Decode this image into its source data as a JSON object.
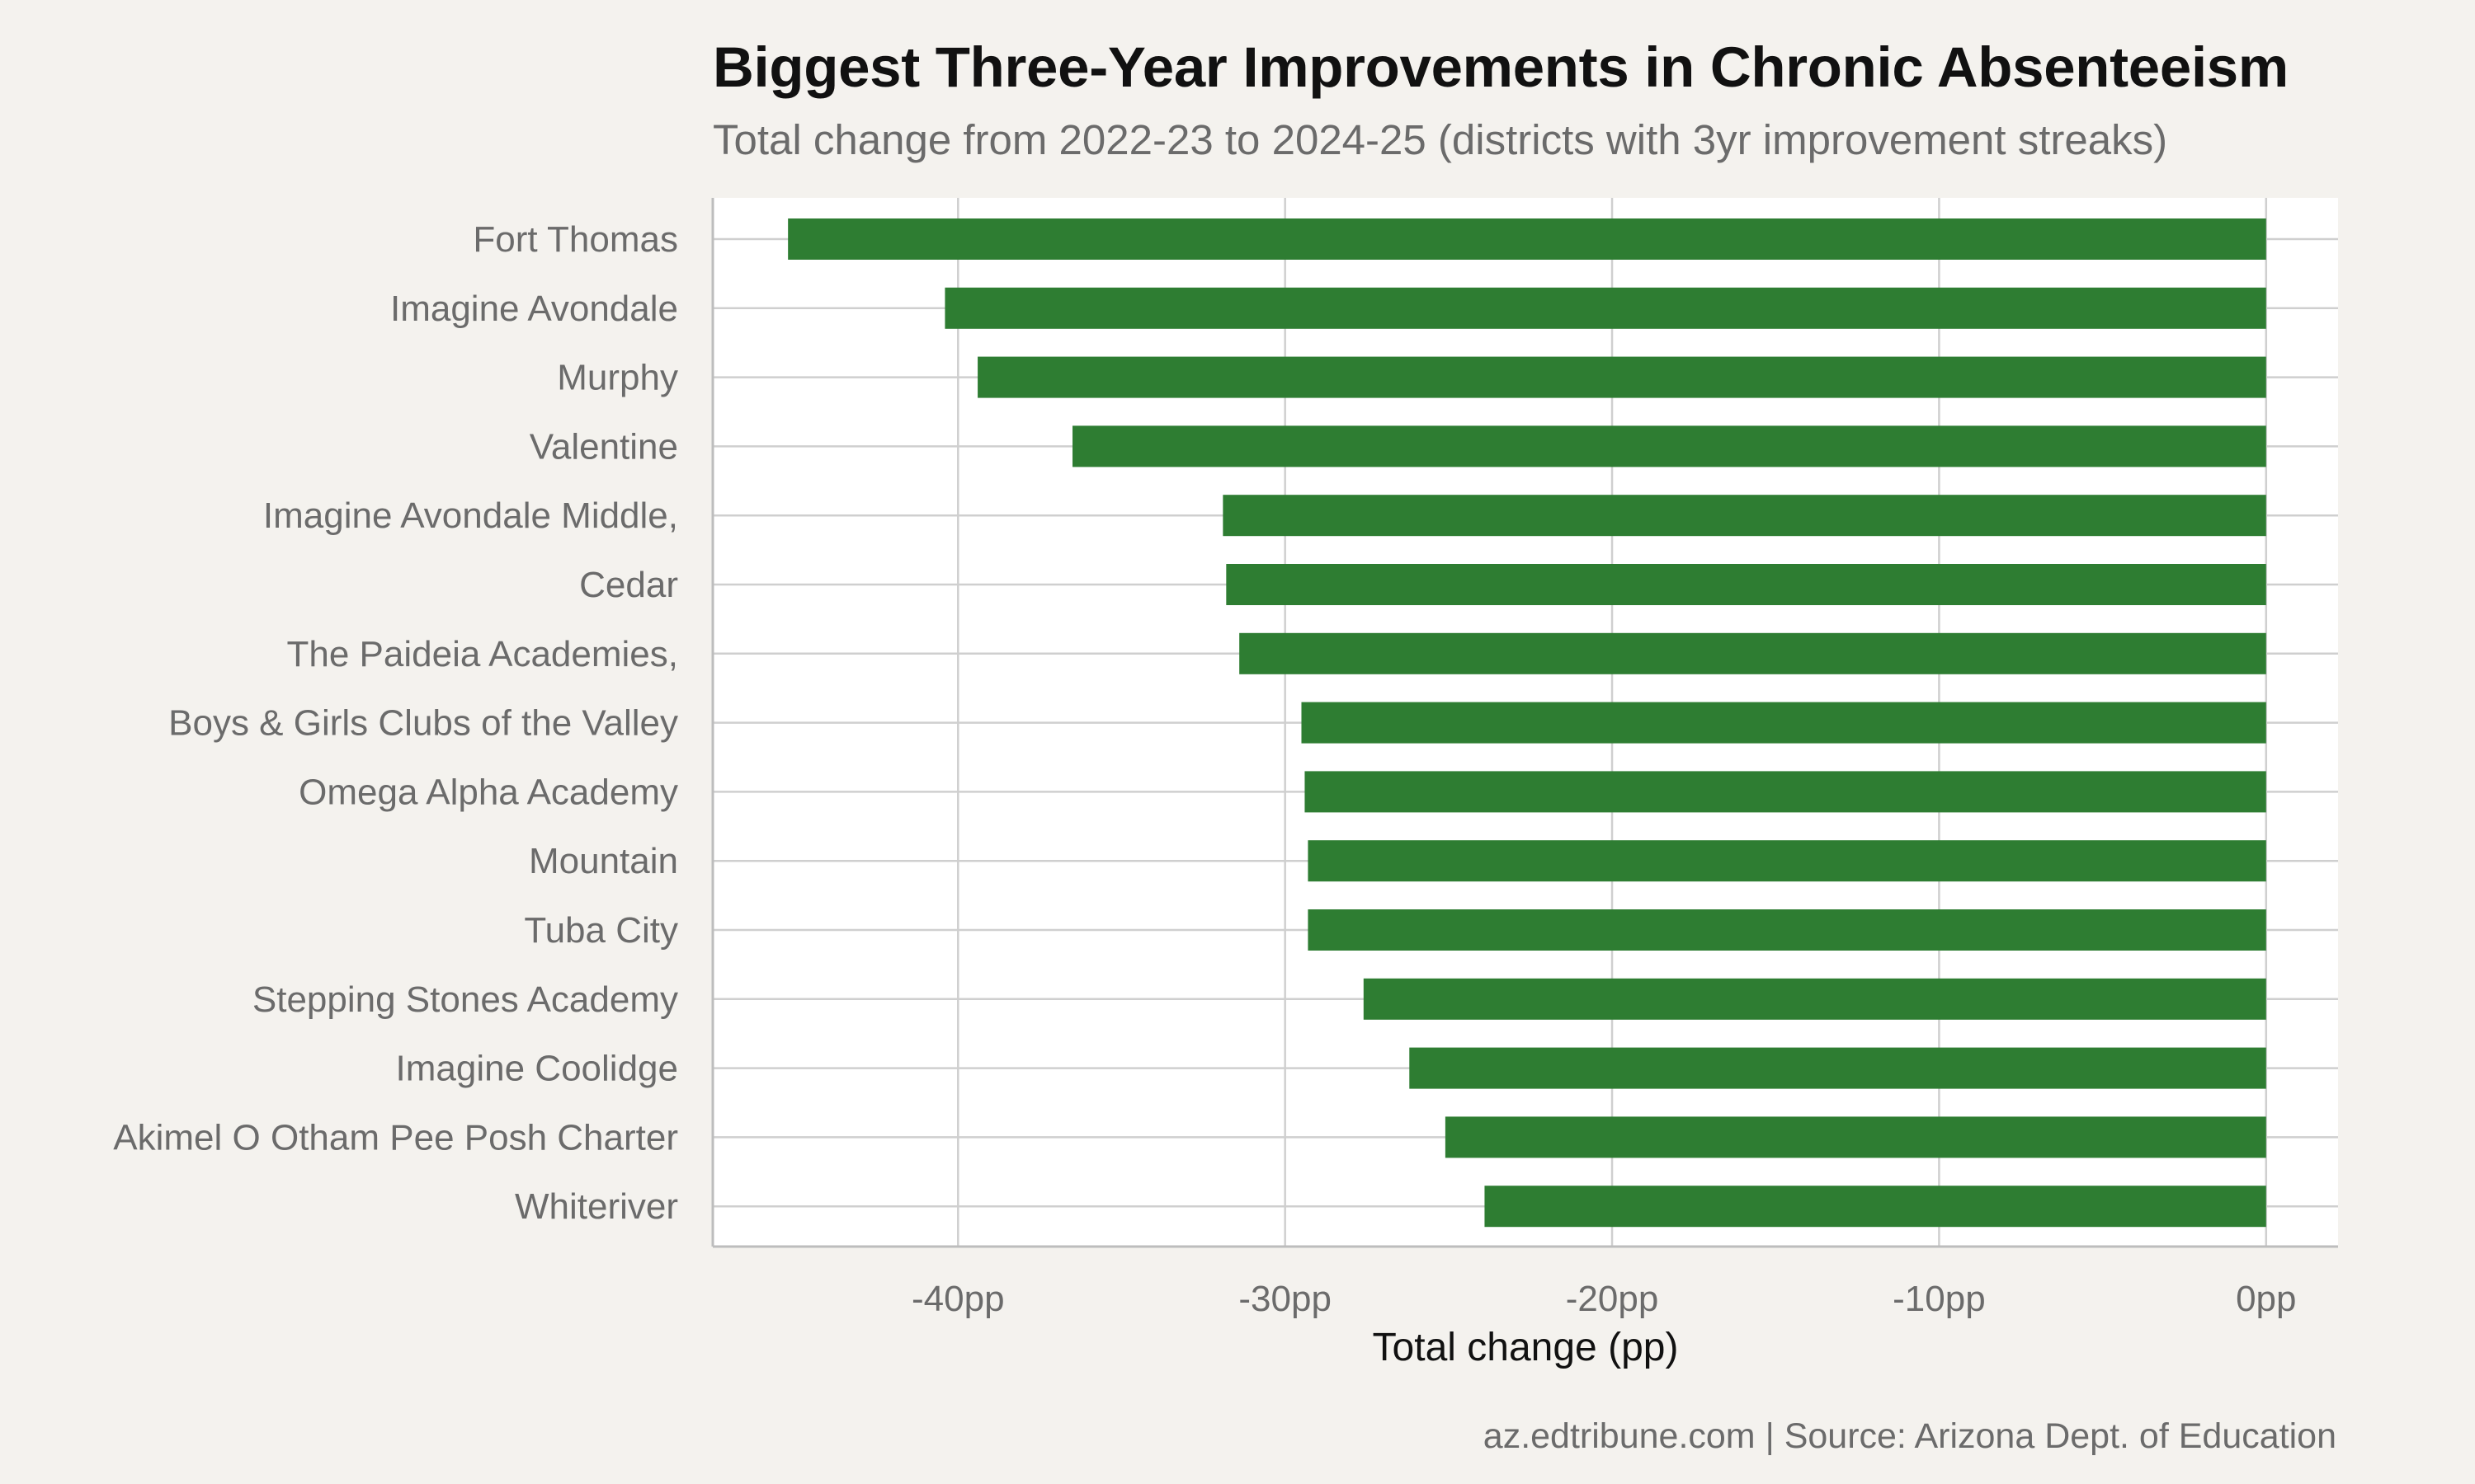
{
  "chart_data": {
    "type": "bar",
    "orientation": "horizontal",
    "title": "Biggest Three-Year Improvements in Chronic Absenteeism",
    "subtitle": "Total change from 2022-23 to 2024-25 (districts with 3yr improvement streaks)",
    "caption": "az.edtribune.com | Source: Arizona Dept. of Education",
    "xlabel": "Total change (pp)",
    "ylabel": "",
    "xlim": [
      -47.5,
      2.2
    ],
    "x_ticks": [
      -40,
      -30,
      -20,
      -10,
      0
    ],
    "x_tick_labels": [
      "-40pp",
      "-30pp",
      "-20pp",
      "-10pp",
      "0pp"
    ],
    "grid": true,
    "bar_color": "#2e7d32",
    "categories": [
      "Fort Thomas",
      "Imagine Avondale",
      "Murphy",
      "Valentine",
      "Imagine Avondale Middle,",
      "Cedar",
      "The Paideia Academies,",
      "Boys & Girls Clubs of the Valley",
      "Omega Alpha Academy",
      "Mountain",
      "Tuba City",
      "Stepping Stones Academy",
      "Imagine Coolidge",
      "Akimel O Otham Pee Posh Charter",
      "Whiteriver"
    ],
    "values": [
      -45.2,
      -40.4,
      -39.4,
      -36.5,
      -31.9,
      -31.8,
      -31.4,
      -29.5,
      -29.4,
      -29.3,
      -29.3,
      -27.6,
      -26.2,
      -25.1,
      -23.9
    ]
  }
}
